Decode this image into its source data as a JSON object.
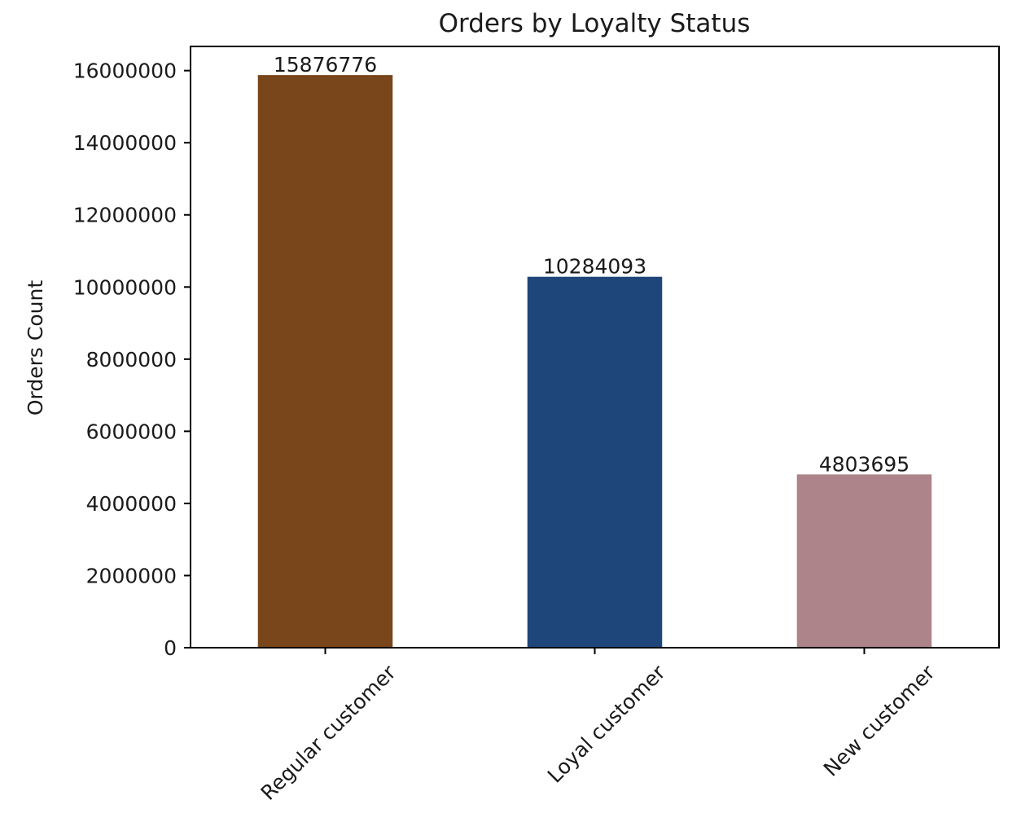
{
  "chart_data": {
    "type": "bar",
    "title": "Orders by Loyalty Status",
    "xlabel": "",
    "ylabel": "Orders Count",
    "categories": [
      "Regular customer",
      "Loyal customer",
      "New customer"
    ],
    "values": [
      15876776,
      10284093,
      4803695
    ],
    "data_labels": [
      "15876776",
      "10284093",
      "4803695"
    ],
    "colors": [
      "#78461a",
      "#1f467a",
      "#ad848a"
    ],
    "ylim": [
      0,
      16670000
    ],
    "yticks": [
      0,
      2000000,
      4000000,
      6000000,
      8000000,
      10000000,
      12000000,
      14000000,
      16000000
    ],
    "ytick_labels": [
      "0",
      "2000000",
      "4000000",
      "6000000",
      "8000000",
      "10000000",
      "12000000",
      "14000000",
      "16000000"
    ],
    "grid": false,
    "legend": null
  }
}
